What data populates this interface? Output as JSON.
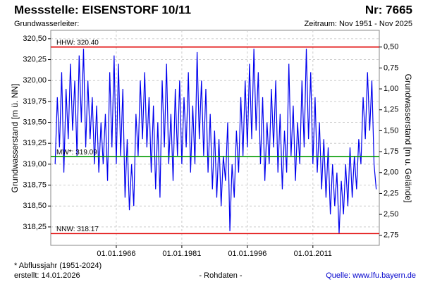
{
  "chart_data": {
    "type": "line",
    "title": "Messstelle: EISENSTORF 10/11",
    "number": "Nr: 7665",
    "subtitle": "Grundwasserleiter:",
    "period": "Zeitraum: Nov 1951 - Nov 2025",
    "ylabel": "Grundwasserstand [m ü. NN]",
    "y2label": "Grundwasserstand [m u. Gelände]",
    "footnote": "* Abflussjahr (1951-2024)",
    "created": "erstellt:  14.01.2026",
    "rawdata": "- Rohdaten -",
    "source": "Quelle: www.lfu.bayern.de",
    "grid": true,
    "xlim": [
      1951.0,
      2026.2
    ],
    "xticks": [
      {
        "value": 1966,
        "label": "01.01.1966"
      },
      {
        "value": 1981,
        "label": "01.01.1981"
      },
      {
        "value": 1996,
        "label": "01.01.1996"
      },
      {
        "value": 2011,
        "label": "01.01.2011"
      }
    ],
    "ylim": [
      318.03,
      320.6
    ],
    "yticks": [
      {
        "value": 318.25,
        "label": "318,25"
      },
      {
        "value": 318.5,
        "label": "318,50"
      },
      {
        "value": 318.75,
        "label": "318,75"
      },
      {
        "value": 319,
        "label": "319,00"
      },
      {
        "value": 319.25,
        "label": "319,25"
      },
      {
        "value": 319.5,
        "label": "319,50"
      },
      {
        "value": 319.75,
        "label": "319,75"
      },
      {
        "value": 320,
        "label": "320,00"
      },
      {
        "value": 320.25,
        "label": "320,25"
      },
      {
        "value": 320.5,
        "label": "320,50"
      }
    ],
    "y2lim": [
      2.87,
      0.3
    ],
    "y2ticks": [
      {
        "value": 0.5,
        "label": "0,50"
      },
      {
        "value": 0.75,
        "label": "0,75"
      },
      {
        "value": 1,
        "label": "1,00"
      },
      {
        "value": 1.25,
        "label": "1,25"
      },
      {
        "value": 1.5,
        "label": "1,50"
      },
      {
        "value": 1.75,
        "label": "1,75"
      },
      {
        "value": 2,
        "label": "2,00"
      },
      {
        "value": 2.25,
        "label": "2,25"
      },
      {
        "value": 2.5,
        "label": "2,50"
      },
      {
        "value": 2.75,
        "label": "2,75"
      }
    ],
    "reference_lines": [
      {
        "label": "HHW: 320.40",
        "value": 320.4,
        "color": "#e00000"
      },
      {
        "label": "MW*: 319.09",
        "value": 319.09,
        "color": "#009900"
      },
      {
        "label": "NNW: 318.17",
        "value": 318.17,
        "color": "#e00000"
      }
    ],
    "x": [
      1952,
      1952.5,
      1953,
      1953.5,
      1954,
      1954.5,
      1955,
      1955.5,
      1956,
      1956.5,
      1957,
      1957.5,
      1958,
      1958.5,
      1959,
      1959.5,
      1960,
      1960.5,
      1961,
      1961.5,
      1962,
      1962.5,
      1963,
      1963.5,
      1964,
      1964.5,
      1965,
      1965.5,
      1966,
      1966.5,
      1967,
      1967.5,
      1968,
      1968.5,
      1969,
      1969.5,
      1970,
      1970.5,
      1971,
      1971.5,
      1972,
      1972.5,
      1973,
      1973.5,
      1974,
      1974.5,
      1975,
      1975.5,
      1976,
      1976.5,
      1977,
      1977.5,
      1978,
      1978.5,
      1979,
      1979.5,
      1980,
      1980.5,
      1981,
      1981.5,
      1982,
      1982.5,
      1983,
      1983.5,
      1984,
      1984.5,
      1985,
      1985.5,
      1986,
      1986.5,
      1987,
      1987.5,
      1988,
      1988.5,
      1989,
      1989.5,
      1990,
      1990.5,
      1991,
      1991.5,
      1992,
      1992.5,
      1993,
      1993.5,
      1994,
      1994.5,
      1995,
      1995.5,
      1996,
      1996.5,
      1997,
      1997.5,
      1998,
      1998.5,
      1999,
      1999.5,
      2000,
      2000.5,
      2001,
      2001.5,
      2002,
      2002.5,
      2003,
      2003.5,
      2004,
      2004.5,
      2005,
      2005.5,
      2006,
      2006.5,
      2007,
      2007.5,
      2008,
      2008.5,
      2009,
      2009.5,
      2010,
      2010.5,
      2011,
      2011.5,
      2012,
      2012.5,
      2013,
      2013.5,
      2014,
      2014.5,
      2015,
      2015.5,
      2016,
      2016.5,
      2017,
      2017.5,
      2018,
      2018.5,
      2019,
      2019.5,
      2020,
      2020.5,
      2021,
      2021.5,
      2022,
      2022.5,
      2023,
      2023.5,
      2024,
      2024.5,
      2025,
      2025.5
    ],
    "series": [
      {
        "color": "#0000ee",
        "values": [
          319.0,
          319.8,
          319.2,
          320.1,
          318.9,
          319.9,
          319.3,
          320.2,
          319.4,
          320.0,
          319.1,
          320.3,
          319.5,
          320.38,
          319.2,
          320.0,
          319.3,
          319.8,
          319.0,
          319.7,
          318.9,
          319.5,
          319.0,
          319.6,
          318.8,
          320.1,
          319.2,
          320.3,
          319.0,
          320.2,
          319.1,
          319.9,
          318.6,
          319.3,
          318.45,
          319.0,
          318.5,
          319.6,
          319.1,
          320.0,
          319.3,
          320.1,
          319.2,
          319.8,
          318.9,
          319.7,
          318.7,
          319.5,
          318.6,
          320.0,
          319.2,
          320.2,
          319.0,
          319.6,
          318.8,
          319.9,
          319.1,
          320.0,
          319.0,
          319.8,
          319.2,
          320.1,
          318.9,
          319.7,
          319.0,
          320.34,
          319.3,
          320.0,
          319.1,
          319.9,
          318.9,
          319.6,
          318.7,
          319.4,
          318.6,
          319.3,
          318.5,
          319.1,
          318.8,
          319.5,
          318.2,
          319.0,
          318.6,
          319.4,
          318.9,
          319.8,
          319.1,
          320.0,
          319.2,
          320.2,
          319.3,
          320.38,
          319.4,
          320.1,
          319.0,
          319.8,
          318.8,
          319.5,
          319.0,
          319.9,
          319.2,
          320.0,
          318.9,
          319.6,
          318.7,
          319.4,
          318.9,
          320.2,
          319.1,
          319.7,
          318.8,
          319.5,
          319.0,
          320.0,
          319.2,
          320.38,
          319.3,
          320.1,
          319.0,
          319.8,
          318.9,
          319.5,
          318.7,
          319.3,
          318.6,
          319.2,
          318.4,
          319.0,
          318.5,
          318.9,
          318.17,
          318.8,
          318.4,
          319.0,
          318.5,
          319.2,
          318.6,
          319.1,
          318.7,
          319.3,
          319.0,
          319.8,
          319.3,
          320.1,
          319.4,
          320.0,
          319.0,
          318.7
        ]
      }
    ]
  }
}
